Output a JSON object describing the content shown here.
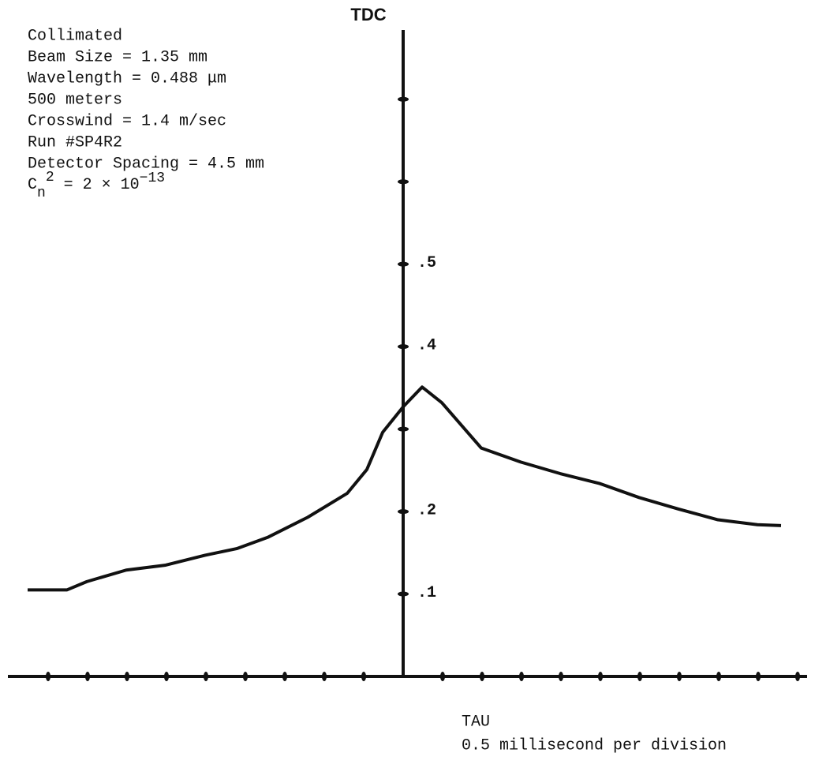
{
  "chart_data": {
    "type": "line",
    "title": "TDC",
    "annotations": [
      "Collimated",
      "Beam Size = 1.35 mm",
      "Wavelength = 0.488 μm",
      "500 meters",
      "Crosswind = 1.4 m/sec",
      "Run #SP4R2",
      "Detector Spacing = 4.5 mm"
    ],
    "cn2": {
      "base": "C",
      "sub": "n",
      "sup": "2",
      "rest": " = 2 × 10",
      "exp": "−13"
    },
    "x_label": [
      "TAU",
      "0.5 millisecond per division"
    ],
    "color": "#111111",
    "x": [
      -9.52,
      -8.52,
      -8.02,
      -7.02,
      -6.02,
      -5.02,
      -4.22,
      -3.42,
      -2.42,
      -1.42,
      -0.92,
      -0.52,
      0,
      0.48,
      0.98,
      1.98,
      2.98,
      3.98,
      4.98,
      5.98,
      6.98,
      7.98,
      8.98,
      9.58
    ],
    "values": [
      0.105,
      0.105,
      0.115,
      0.129,
      0.135,
      0.147,
      0.155,
      0.169,
      0.193,
      0.222,
      0.251,
      0.296,
      0.327,
      0.351,
      0.332,
      0.277,
      0.26,
      0.246,
      0.234,
      0.217,
      0.203,
      0.19,
      0.184,
      0.183
    ],
    "xlim": [
      -10.02,
      10.24
    ],
    "ylim": [
      0,
      0.784
    ],
    "xticks": [
      {
        "value": -9,
        "label": null
      },
      {
        "value": -8,
        "label": null
      },
      {
        "value": -7,
        "label": null
      },
      {
        "value": -6,
        "label": null
      },
      {
        "value": -5,
        "label": null
      },
      {
        "value": -4,
        "label": null
      },
      {
        "value": -3,
        "label": null
      },
      {
        "value": -2,
        "label": null
      },
      {
        "value": -1,
        "label": null
      },
      {
        "value": 1,
        "label": null
      },
      {
        "value": 2,
        "label": null
      },
      {
        "value": 3,
        "label": null
      },
      {
        "value": 4,
        "label": null
      },
      {
        "value": 5,
        "label": null
      },
      {
        "value": 6,
        "label": null
      },
      {
        "value": 7,
        "label": null
      },
      {
        "value": 8,
        "label": null
      },
      {
        "value": 9,
        "label": null
      },
      {
        "value": 10,
        "label": null
      }
    ],
    "yticks": [
      {
        "value": 0.1,
        "label": ".1"
      },
      {
        "value": 0.2,
        "label": ".2"
      },
      {
        "value": 0.3,
        "label": null
      },
      {
        "value": 0.4,
        "label": ".4"
      },
      {
        "value": 0.5,
        "label": ".5"
      },
      {
        "value": 0.6,
        "label": null
      },
      {
        "value": 0.7,
        "label": null
      }
    ]
  }
}
